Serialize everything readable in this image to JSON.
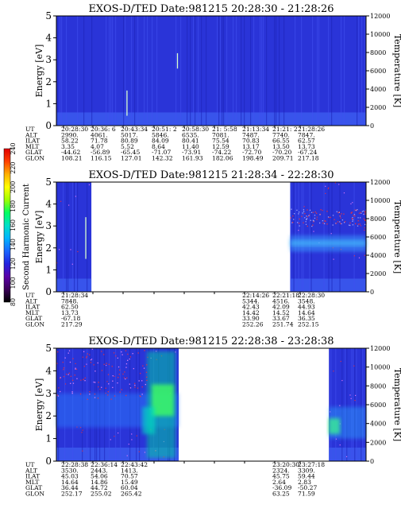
{
  "chart_data": [
    {
      "type": "heatmap",
      "title": "EXOS-D/TED   Date:981215  20:28:30 - 21:28:26",
      "ylabel": "Energy [eV]",
      "y2label": "Temperature [K]",
      "ylim": [
        0,
        5
      ],
      "y2lim": [
        0,
        12000
      ],
      "yticks": [
        "0",
        "1",
        "2",
        "3",
        "4",
        "5"
      ],
      "y2ticks": [
        "0",
        "2000",
        "4000",
        "6000",
        "8000",
        "10000",
        "12000"
      ],
      "data_coverage": [
        [
          0.0,
          1.0
        ]
      ],
      "bright_streaks": [
        {
          "x": 0.228,
          "y0": 0.45,
          "y1": 1.6
        },
        {
          "x": 0.391,
          "y0": 2.6,
          "y1": 3.3
        }
      ],
      "rows": [
        {
          "label": "UT",
          "values": [
            "20:28:30",
            "20:36: 6",
            "20:43:34",
            "20:51: 2",
            "20:58:30",
            "21: 5:58",
            "21:13:34",
            "21:21: 2",
            "21:28:26"
          ]
        },
        {
          "label": "ALT",
          "values": [
            "2990.",
            "4061.",
            "5017.",
            "5846.",
            "6535.",
            "7081.",
            "7487.",
            "7740.",
            "7847."
          ]
        },
        {
          "label": "ILAT",
          "values": [
            "58.22",
            "71.78",
            "80.89",
            "84.09",
            "80.41",
            "75.54",
            "70.83",
            "66.55",
            "62.57"
          ]
        },
        {
          "label": "MLT",
          "values": [
            "3.35",
            "4.07",
            "5.52",
            "8.64",
            "11.40",
            "12.59",
            "13.17",
            "13.50",
            "13.73"
          ]
        },
        {
          "label": "GLAT",
          "values": [
            "-44.62",
            "-56.89",
            "-65.45",
            "-71.07",
            "-73.91",
            "-74.22",
            "-72.70",
            "-70.20",
            "-67.24"
          ]
        },
        {
          "label": "GLON",
          "values": [
            "108.21",
            "116.15",
            "127.01",
            "142.32",
            "161.93",
            "182.06",
            "198.49",
            "209.71",
            "217.18"
          ]
        }
      ]
    },
    {
      "type": "heatmap",
      "title": "EXOS-D/TED   Date:981215  21:28:34 - 22:28:30",
      "ylabel": "Energy [eV]",
      "y2label": "Temperature [K]",
      "ylim": [
        0,
        5
      ],
      "y2lim": [
        0,
        12000
      ],
      "yticks": [
        "0",
        "1",
        "2",
        "3",
        "4",
        "5"
      ],
      "y2ticks": [
        "0",
        "2000",
        "4000",
        "6000",
        "8000",
        "10000",
        "12000"
      ],
      "data_coverage": [
        [
          0.0,
          0.113
        ],
        [
          0.755,
          1.0
        ]
      ],
      "bright_streaks": [
        {
          "x": 0.095,
          "y0": 1.5,
          "y1": 3.4
        }
      ],
      "rows": [
        {
          "label": "UT",
          "values": [
            "21:28:34",
            "",
            "",
            "",
            "",
            "",
            "22:14:26",
            "22:21:18",
            "22:28:30"
          ]
        },
        {
          "label": "ALT",
          "values": [
            "7848.",
            "",
            "",
            "",
            "",
            "",
            "5344.",
            "4516.",
            "3548."
          ]
        },
        {
          "label": "ILAT",
          "values": [
            "62.50",
            "",
            "",
            "",
            "",
            "",
            "42.43",
            "42.09",
            "44.93"
          ]
        },
        {
          "label": "MLT",
          "values": [
            "13.73",
            "",
            "",
            "",
            "",
            "",
            "14.42",
            "14.52",
            "14.64"
          ]
        },
        {
          "label": "GLAT",
          "values": [
            "-67.18",
            "",
            "",
            "",
            "",
            "",
            "33.90",
            "33.67",
            "36.35"
          ]
        },
        {
          "label": "GLON",
          "values": [
            "217.29",
            "",
            "",
            "",
            "",
            "",
            "252.26",
            "251.74",
            "252.15"
          ]
        }
      ]
    },
    {
      "type": "heatmap",
      "title": "EXOS-D/TED   Date:981215  22:28:38 - 23:28:38",
      "ylabel": "Energy [eV]",
      "y2label": "Temperature [K]",
      "ylim": [
        0,
        5
      ],
      "y2lim": [
        0,
        12000
      ],
      "yticks": [
        "0",
        "1",
        "2",
        "3",
        "4",
        "5"
      ],
      "y2ticks": [
        "0",
        "2000",
        "4000",
        "6000",
        "8000",
        "10000",
        "12000"
      ],
      "data_coverage": [
        [
          0.0,
          0.395
        ],
        [
          0.88,
          1.0
        ]
      ],
      "bright_streaks": [],
      "rows": [
        {
          "label": "UT",
          "values": [
            "22:28:38",
            "22:36:14",
            "22:43:42",
            "",
            "",
            "",
            "",
            "23:20:30",
            "23:27:18"
          ]
        },
        {
          "label": "ALT",
          "values": [
            "3530.",
            "2443.",
            "1413.",
            "",
            "",
            "",
            "",
            "2324.",
            "3309."
          ]
        },
        {
          "label": "ILAT",
          "values": [
            "45.03",
            "54.06",
            "70.57",
            "",
            "",
            "",
            "",
            "45.75",
            "59.44"
          ]
        },
        {
          "label": "MLT",
          "values": [
            "14.64",
            "14.86",
            "15.49",
            "",
            "",
            "",
            "",
            "2.64",
            "2.83"
          ]
        },
        {
          "label": "GLAT",
          "values": [
            "36.44",
            "44.72",
            "60.04",
            "",
            "",
            "",
            "",
            "-36.09",
            "-50.27"
          ]
        },
        {
          "label": "GLON",
          "values": [
            "252.17",
            "255.02",
            "265.42",
            "",
            "",
            "",
            "",
            "63.25",
            "71.59"
          ]
        }
      ]
    }
  ],
  "colorbar": {
    "label": "Second Harmonic Current",
    "ticks": [
      "80",
      "100",
      "120",
      "140",
      "160",
      "180",
      "200",
      "220",
      "240"
    ],
    "colors": [
      "#000000",
      "#3a0058",
      "#5a00a8",
      "#2222e0",
      "#1a66ff",
      "#00b4ff",
      "#00e0c8",
      "#00ff60",
      "#a0ff00",
      "#ffff00",
      "#ffb000",
      "#ff4000",
      "#e00000"
    ]
  }
}
